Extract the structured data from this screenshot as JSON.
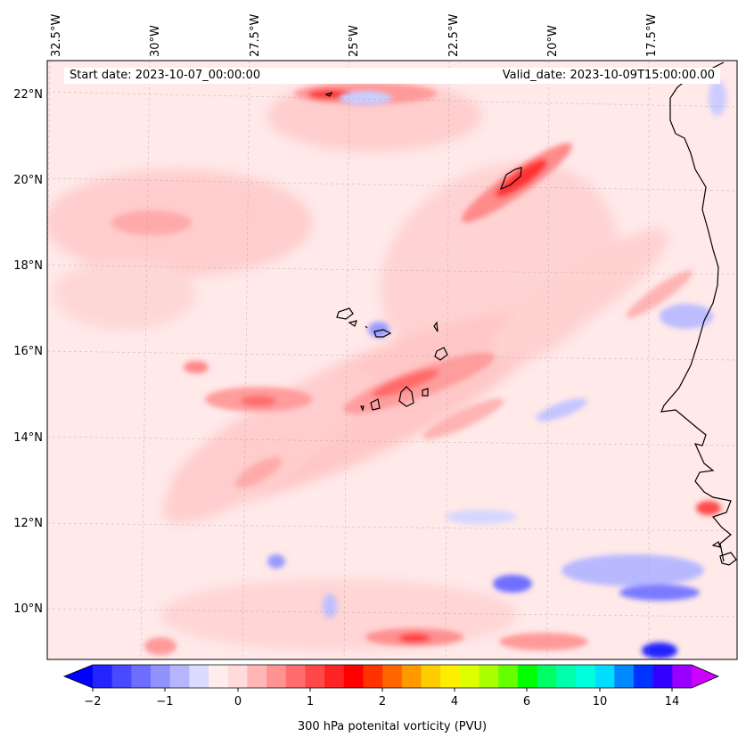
{
  "header": {
    "start_date": "Start date: 2023-10-07_00:00:00",
    "valid_date": "Valid_date: 2023-10-09T15:00:00.00"
  },
  "map": {
    "lon_labels": [
      "32.5°W",
      "30°W",
      "27.5°W",
      "25°W",
      "22.5°W",
      "20°W",
      "17.5°W"
    ],
    "lat_labels": [
      "22°N",
      "20°N",
      "18°N",
      "16°N",
      "14°N",
      "12°N",
      "10°N"
    ],
    "gridlines": true,
    "field": "potential vorticity",
    "coastline_color": "#000000"
  },
  "colorbar": {
    "label": "300 hPa potenital vorticity (PVU)",
    "ticks": [
      "−2",
      "−1",
      "0",
      "1",
      "2",
      "4",
      "6",
      "10",
      "14"
    ],
    "colors": [
      "#0000ff",
      "#2424ff",
      "#4949ff",
      "#6d6dff",
      "#9292ff",
      "#b6b6ff",
      "#dbdbff",
      "#ffeded",
      "#ffdbdb",
      "#ffb6b6",
      "#ff9292",
      "#ff6d6d",
      "#ff4949",
      "#ff2424",
      "#ff0000",
      "#ff3300",
      "#ff6600",
      "#ff9900",
      "#ffcc00",
      "#ffee00",
      "#ddff00",
      "#aaff00",
      "#66ff00",
      "#00ff00",
      "#00ff66",
      "#00ffaa",
      "#00ffdd",
      "#00ddff",
      "#0088ff",
      "#0033ff",
      "#3300ff",
      "#9900ff",
      "#cc00ff"
    ]
  }
}
